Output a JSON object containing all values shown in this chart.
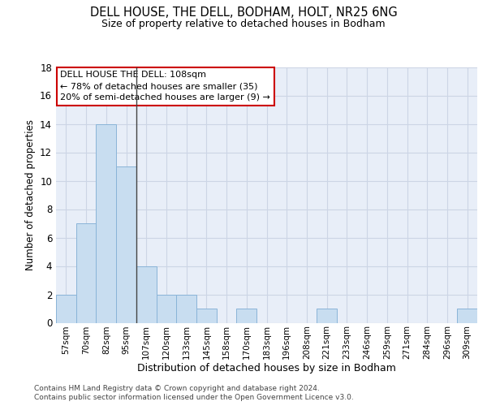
{
  "title1": "DELL HOUSE, THE DELL, BODHAM, HOLT, NR25 6NG",
  "title2": "Size of property relative to detached houses in Bodham",
  "xlabel": "Distribution of detached houses by size in Bodham",
  "ylabel": "Number of detached properties",
  "bar_labels": [
    "57sqm",
    "70sqm",
    "82sqm",
    "95sqm",
    "107sqm",
    "120sqm",
    "133sqm",
    "145sqm",
    "158sqm",
    "170sqm",
    "183sqm",
    "196sqm",
    "208sqm",
    "221sqm",
    "233sqm",
    "246sqm",
    "259sqm",
    "271sqm",
    "284sqm",
    "296sqm",
    "309sqm"
  ],
  "bar_values": [
    2,
    7,
    14,
    11,
    4,
    2,
    2,
    1,
    0,
    1,
    0,
    0,
    0,
    1,
    0,
    0,
    0,
    0,
    0,
    0,
    1
  ],
  "bar_color": "#c8ddf0",
  "bar_edge_color": "#8ab4d8",
  "vline_color": "#444444",
  "vline_x": 3.5,
  "annotation_line1": "DELL HOUSE THE DELL: 108sqm",
  "annotation_line2": "← 78% of detached houses are smaller (35)",
  "annotation_line3": "20% of semi-detached houses are larger (9) →",
  "annotation_box_color": "#ffffff",
  "annotation_box_edge": "#cc0000",
  "ylim": [
    0,
    18
  ],
  "yticks": [
    0,
    2,
    4,
    6,
    8,
    10,
    12,
    14,
    16,
    18
  ],
  "grid_color": "#ccd5e5",
  "plot_bg_color": "#e8eef8",
  "footer_line1": "Contains HM Land Registry data © Crown copyright and database right 2024.",
  "footer_line2": "Contains public sector information licensed under the Open Government Licence v3.0."
}
